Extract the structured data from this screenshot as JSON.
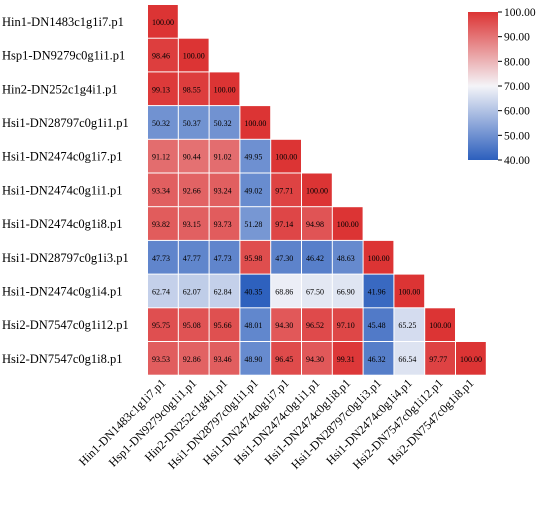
{
  "chart_data": {
    "type": "heatmap",
    "variant": "lower-triangular similarity matrix",
    "title": "",
    "labels": [
      "Hin1-DN1483c1g1i7.p1",
      "Hsp1-DN9279c0g1i1.p1",
      "Hin2-DN252c1g4i1.p1",
      "Hsi1-DN28797c0g1i1.p1",
      "Hsi1-DN2474c0g1i7.p1",
      "Hsi1-DN2474c0g1i1.p1",
      "Hsi1-DN2474c0g1i8.p1",
      "Hsi1-DN28797c0g1i3.p1",
      "Hsi1-DN2474c0g1i4.p1",
      "Hsi2-DN7547c0g1i12.p1",
      "Hsi2-DN7547c0g1i8.p1"
    ],
    "values": [
      [
        100.0
      ],
      [
        98.46,
        100.0
      ],
      [
        99.13,
        98.55,
        100.0
      ],
      [
        50.32,
        50.37,
        50.32,
        100.0
      ],
      [
        91.12,
        90.44,
        91.02,
        49.95,
        100.0
      ],
      [
        93.34,
        92.66,
        93.24,
        49.02,
        97.71,
        100.0
      ],
      [
        93.82,
        93.15,
        93.73,
        51.28,
        97.14,
        94.98,
        100.0
      ],
      [
        47.73,
        47.77,
        47.73,
        95.98,
        47.3,
        46.42,
        48.63,
        100.0
      ],
      [
        62.74,
        62.07,
        62.84,
        40.35,
        68.86,
        67.5,
        66.9,
        41.96,
        100.0
      ],
      [
        95.75,
        95.08,
        95.66,
        48.01,
        94.3,
        96.52,
        97.1,
        45.48,
        65.25,
        100.0
      ],
      [
        93.53,
        92.86,
        93.46,
        48.9,
        96.45,
        94.3,
        99.31,
        46.32,
        66.54,
        97.77,
        100.0
      ]
    ],
    "colorbar": {
      "min": 40,
      "max": 100,
      "ticks": [
        "100.00",
        "90.00",
        "80.00",
        "70.00",
        "60.00",
        "50.00",
        "40.00"
      ],
      "colors": {
        "low": "#2c5fbd",
        "mid": "#f4f4f8",
        "high": "#dc3434"
      },
      "mid_value": 70
    },
    "legend_position": "top-right"
  }
}
